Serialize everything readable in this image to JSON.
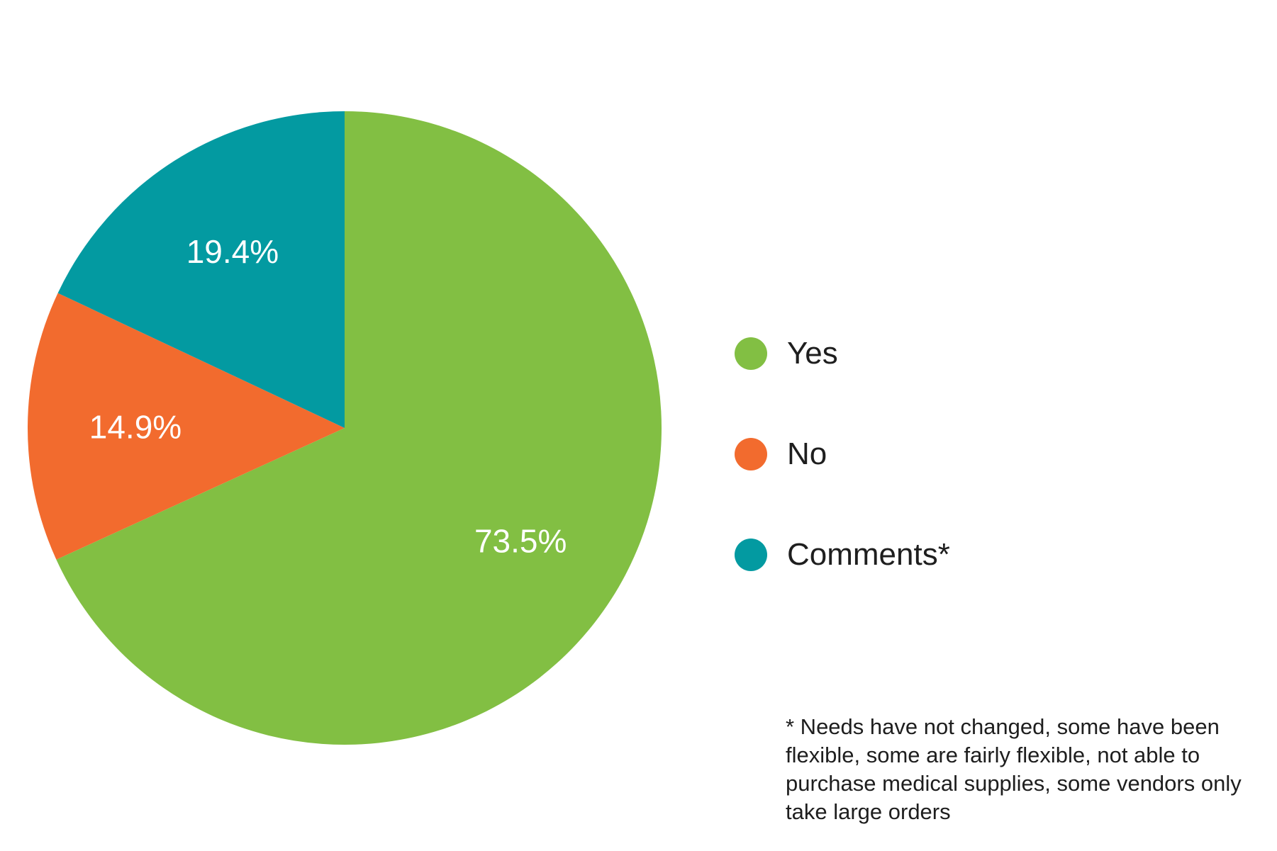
{
  "chart_data": {
    "type": "pie",
    "title": "",
    "slices": [
      {
        "label": "Yes",
        "value": 73.5,
        "display": "73.5%",
        "color": "#82bf43"
      },
      {
        "label": "No",
        "value": 14.9,
        "display": "14.9%",
        "color": "#f26b2e"
      },
      {
        "label": "Comments*",
        "value": 19.4,
        "display": "19.4%",
        "color": "#039aa1"
      }
    ],
    "legend": {
      "placement": "right",
      "entries": [
        "Yes",
        "No",
        "Comments*"
      ]
    },
    "start_angle_deg": 0,
    "direction": "clockwise",
    "footnote": "* Needs have not changed, some have been flexible, some are fairly flexible, not able to purchase medical supplies, some vendors only take large orders"
  }
}
